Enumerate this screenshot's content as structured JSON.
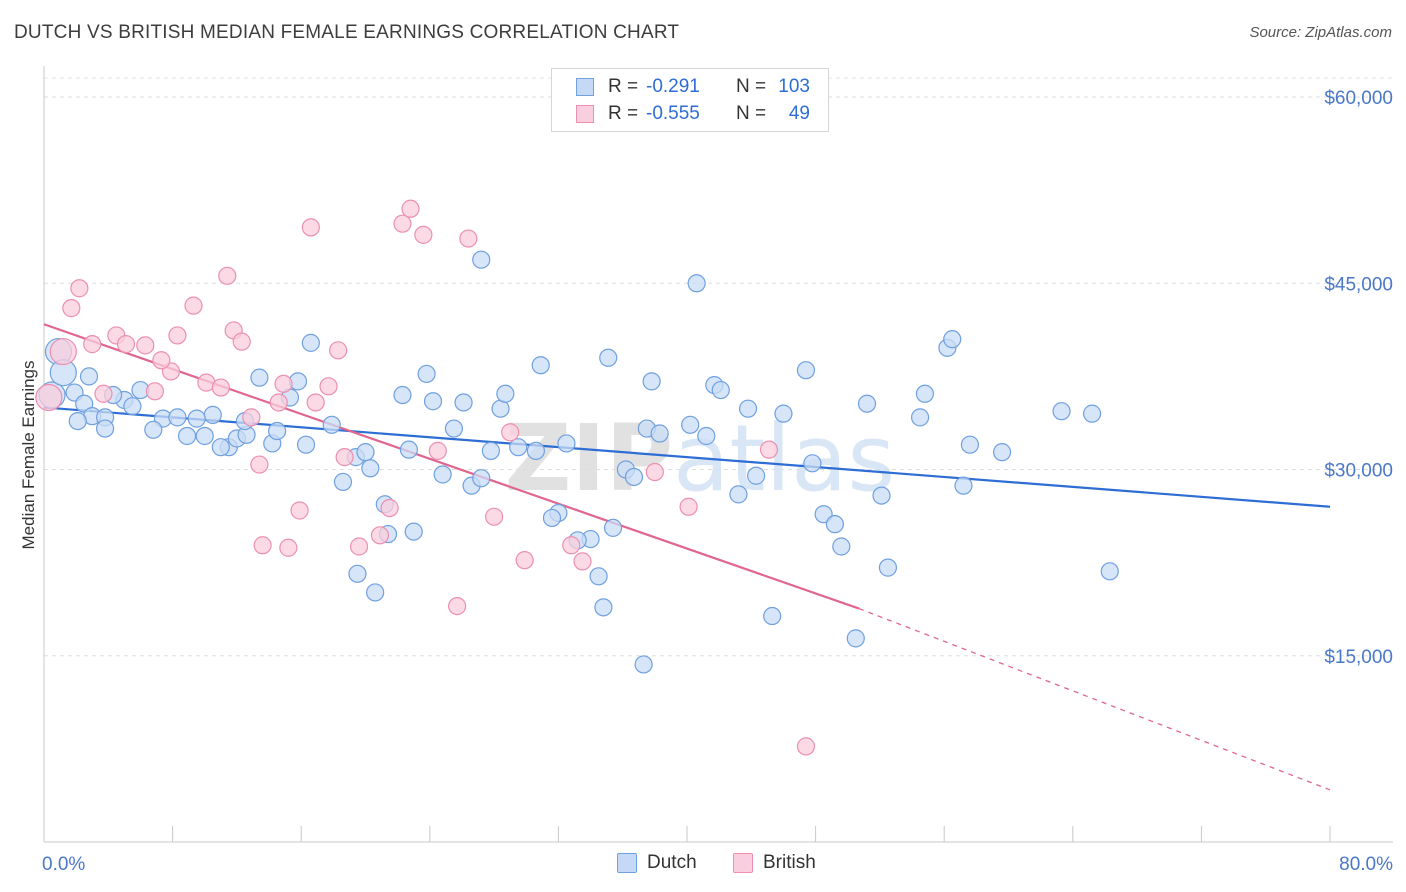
{
  "title": "DUTCH VS BRITISH MEDIAN FEMALE EARNINGS CORRELATION CHART",
  "source": "Source: ZipAtlas.com",
  "watermark": "ZIPatlas",
  "legend": {
    "rows": [
      {
        "r_label": "R =",
        "r_value": "-0.291",
        "n_label": "N =",
        "n_value": "103",
        "color": "#6fa0e0",
        "fill": "#c5d8f5"
      },
      {
        "r_label": "R =",
        "r_value": "-0.555",
        "n_label": "N =",
        "n_value": "49",
        "color": "#ec8fb0",
        "fill": "#f9cede"
      }
    ]
  },
  "bottom_legend": [
    {
      "label": "Dutch",
      "color": "#6fa0e0",
      "fill": "#c5d8f5"
    },
    {
      "label": "British",
      "color": "#ec8fb0",
      "fill": "#f9cede"
    }
  ],
  "chart_data": {
    "type": "scatter",
    "title": "DUTCH VS BRITISH MEDIAN FEMALE EARNINGS CORRELATION CHART",
    "xlabel": "",
    "ylabel": "Median Female Earnings",
    "x_tick_labels": [
      "0.0%",
      "80.0%"
    ],
    "y_tick_labels": [
      "$15,000",
      "$30,000",
      "$45,000",
      "$60,000"
    ],
    "y_ticks": [
      15000,
      30000,
      45000,
      60000
    ],
    "xlim": [
      0,
      80
    ],
    "ylim": [
      0,
      62500
    ],
    "grid": true,
    "legend_position": "top-center",
    "series": [
      {
        "name": "Dutch",
        "color": "#3f7fd6",
        "marker_fill": "#c9dcf6",
        "marker_stroke": "#6fa0e0",
        "trend": {
          "x": [
            0,
            80
          ],
          "y": [
            35000,
            27000
          ],
          "color": "#2e6ed4"
        },
        "points": [
          [
            0.5,
            36000
          ],
          [
            0.9,
            39500
          ],
          [
            1.2,
            37800
          ],
          [
            1.9,
            36200
          ],
          [
            2.5,
            35300
          ],
          [
            3.0,
            34300
          ],
          [
            3.8,
            34200
          ],
          [
            2.8,
            37500
          ],
          [
            5.0,
            35600
          ],
          [
            6.0,
            36400
          ],
          [
            5.5,
            35100
          ],
          [
            4.3,
            36000
          ],
          [
            7.4,
            34100
          ],
          [
            8.3,
            34200
          ],
          [
            8.9,
            32700
          ],
          [
            10.0,
            32700
          ],
          [
            10.5,
            34400
          ],
          [
            11.5,
            31800
          ],
          [
            12.0,
            32500
          ],
          [
            12.6,
            32800
          ],
          [
            13.4,
            37400
          ],
          [
            11.0,
            31800
          ],
          [
            14.2,
            32100
          ],
          [
            14.5,
            33100
          ],
          [
            15.8,
            37100
          ],
          [
            16.3,
            32000
          ],
          [
            16.6,
            40200
          ],
          [
            17.9,
            33600
          ],
          [
            18.6,
            29000
          ],
          [
            19.4,
            31000
          ],
          [
            20.0,
            31400
          ],
          [
            20.3,
            30100
          ],
          [
            21.2,
            27200
          ],
          [
            21.4,
            24800
          ],
          [
            22.3,
            36000
          ],
          [
            22.7,
            31600
          ],
          [
            23.8,
            37700
          ],
          [
            24.2,
            35500
          ],
          [
            24.8,
            29600
          ],
          [
            26.1,
            35400
          ],
          [
            26.6,
            28700
          ],
          [
            27.2,
            29300
          ],
          [
            27.8,
            31500
          ],
          [
            28.4,
            34900
          ],
          [
            28.7,
            36100
          ],
          [
            29.5,
            31800
          ],
          [
            30.6,
            31500
          ],
          [
            30.9,
            38400
          ],
          [
            32.0,
            26500
          ],
          [
            32.5,
            32100
          ],
          [
            34.0,
            24400
          ],
          [
            34.5,
            21400
          ],
          [
            34.8,
            18900
          ],
          [
            35.1,
            39000
          ],
          [
            36.2,
            30000
          ],
          [
            36.7,
            29400
          ],
          [
            35.4,
            25300
          ],
          [
            37.5,
            33300
          ],
          [
            37.8,
            37100
          ],
          [
            38.3,
            32900
          ],
          [
            40.2,
            33600
          ],
          [
            40.6,
            45000
          ],
          [
            41.2,
            32700
          ],
          [
            41.7,
            36800
          ],
          [
            42.1,
            36400
          ],
          [
            43.2,
            28000
          ],
          [
            43.8,
            34900
          ],
          [
            44.3,
            29500
          ],
          [
            45.3,
            18200
          ],
          [
            46.0,
            34500
          ],
          [
            47.4,
            38000
          ],
          [
            47.8,
            30500
          ],
          [
            48.5,
            26400
          ],
          [
            49.2,
            25600
          ],
          [
            49.6,
            23800
          ],
          [
            50.5,
            16400
          ],
          [
            51.2,
            35300
          ],
          [
            52.1,
            27900
          ],
          [
            52.5,
            22100
          ],
          [
            54.5,
            34200
          ],
          [
            54.8,
            36100
          ],
          [
            56.2,
            39800
          ],
          [
            56.5,
            40500
          ],
          [
            57.2,
            28700
          ],
          [
            57.6,
            32000
          ],
          [
            59.6,
            31400
          ],
          [
            63.3,
            34700
          ],
          [
            65.2,
            34500
          ],
          [
            66.3,
            21800
          ],
          [
            31.6,
            26100
          ],
          [
            33.2,
            24300
          ],
          [
            27.2,
            46900
          ],
          [
            25.5,
            33300
          ],
          [
            23.0,
            25000
          ],
          [
            20.6,
            20100
          ],
          [
            19.5,
            21600
          ],
          [
            37.3,
            14300
          ],
          [
            15.3,
            35800
          ],
          [
            9.5,
            34100
          ],
          [
            6.8,
            33200
          ],
          [
            3.8,
            33300
          ],
          [
            2.1,
            33900
          ],
          [
            12.5,
            33900
          ]
        ]
      },
      {
        "name": "British",
        "color": "#e0668f",
        "marker_fill": "#f9cede",
        "marker_stroke": "#ec8fb0",
        "trend": {
          "x": [
            0,
            50.7
          ],
          "y": [
            41700,
            18800
          ],
          "dashed_to": {
            "x": 80,
            "y": 4200
          },
          "color": "#e0668f"
        },
        "points": [
          [
            0.3,
            35800
          ],
          [
            1.2,
            39500
          ],
          [
            1.7,
            43000
          ],
          [
            2.2,
            44600
          ],
          [
            3.0,
            40100
          ],
          [
            4.5,
            40800
          ],
          [
            5.1,
            40100
          ],
          [
            6.3,
            40000
          ],
          [
            6.9,
            36300
          ],
          [
            7.9,
            37900
          ],
          [
            8.3,
            40800
          ],
          [
            9.3,
            43200
          ],
          [
            10.1,
            37000
          ],
          [
            11.4,
            45600
          ],
          [
            11.8,
            41200
          ],
          [
            12.3,
            40300
          ],
          [
            12.9,
            34200
          ],
          [
            13.4,
            30400
          ],
          [
            13.6,
            23900
          ],
          [
            14.6,
            35400
          ],
          [
            15.2,
            23700
          ],
          [
            15.9,
            26700
          ],
          [
            16.6,
            49500
          ],
          [
            17.7,
            36700
          ],
          [
            18.3,
            39600
          ],
          [
            18.7,
            31000
          ],
          [
            19.6,
            23800
          ],
          [
            20.9,
            24700
          ],
          [
            21.5,
            26900
          ],
          [
            22.3,
            49800
          ],
          [
            22.8,
            51000
          ],
          [
            23.6,
            48900
          ],
          [
            24.5,
            31500
          ],
          [
            25.7,
            19000
          ],
          [
            26.4,
            48600
          ],
          [
            28.0,
            26200
          ],
          [
            29.0,
            33000
          ],
          [
            29.9,
            22700
          ],
          [
            32.8,
            23900
          ],
          [
            33.5,
            22600
          ],
          [
            38.0,
            29800
          ],
          [
            40.1,
            27000
          ],
          [
            45.1,
            31600
          ],
          [
            47.4,
            7700
          ],
          [
            14.9,
            36900
          ],
          [
            16.9,
            35400
          ],
          [
            11.0,
            36600
          ],
          [
            7.3,
            38800
          ],
          [
            3.7,
            36100
          ]
        ]
      }
    ]
  }
}
